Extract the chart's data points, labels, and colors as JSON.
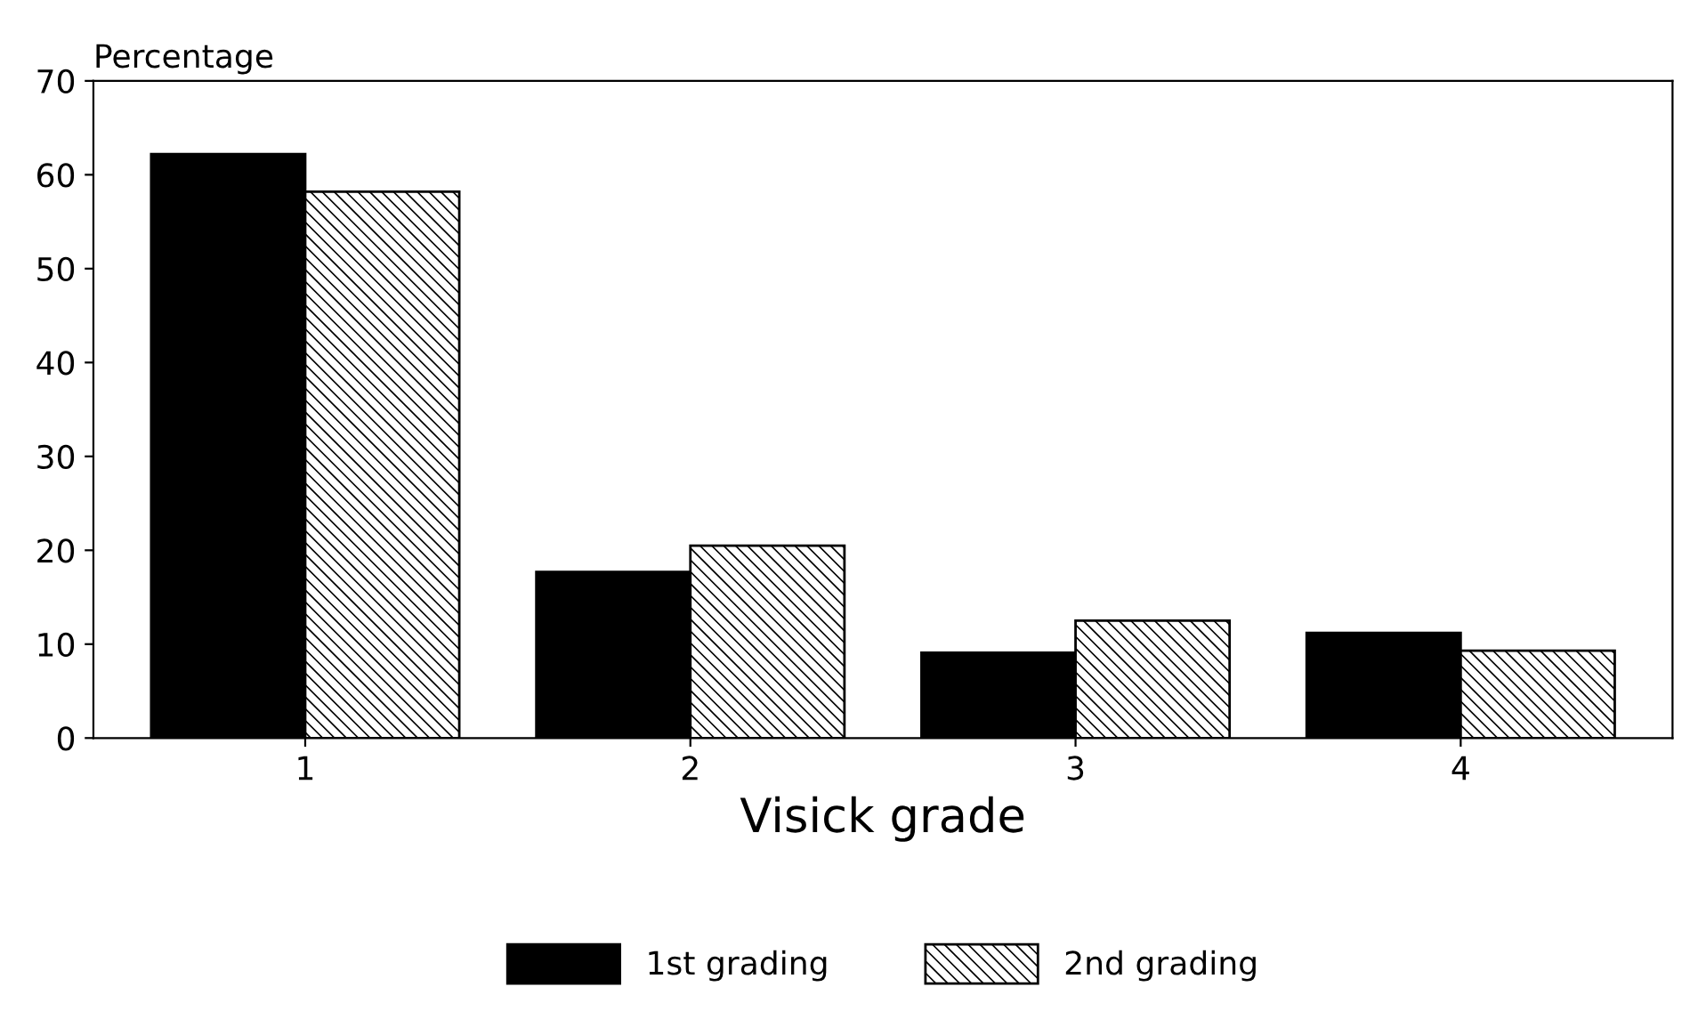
{
  "chart_data": {
    "type": "bar",
    "xlabel": "Visick grade",
    "ylabel": "Percentage",
    "categories": [
      "1",
      "2",
      "3",
      "4"
    ],
    "series": [
      {
        "name": "1st grading",
        "color": "#000000",
        "values": [
          62.2,
          17.7,
          9.1,
          11.2
        ]
      },
      {
        "name": "2nd grading",
        "color": "#000000",
        "values": [
          58.2,
          20.5,
          12.5,
          9.3
        ]
      }
    ],
    "ylim": [
      0,
      70
    ],
    "yticks": [
      0,
      10,
      20,
      30,
      40,
      50,
      60,
      70
    ],
    "grid": false,
    "legend": "bottom"
  }
}
